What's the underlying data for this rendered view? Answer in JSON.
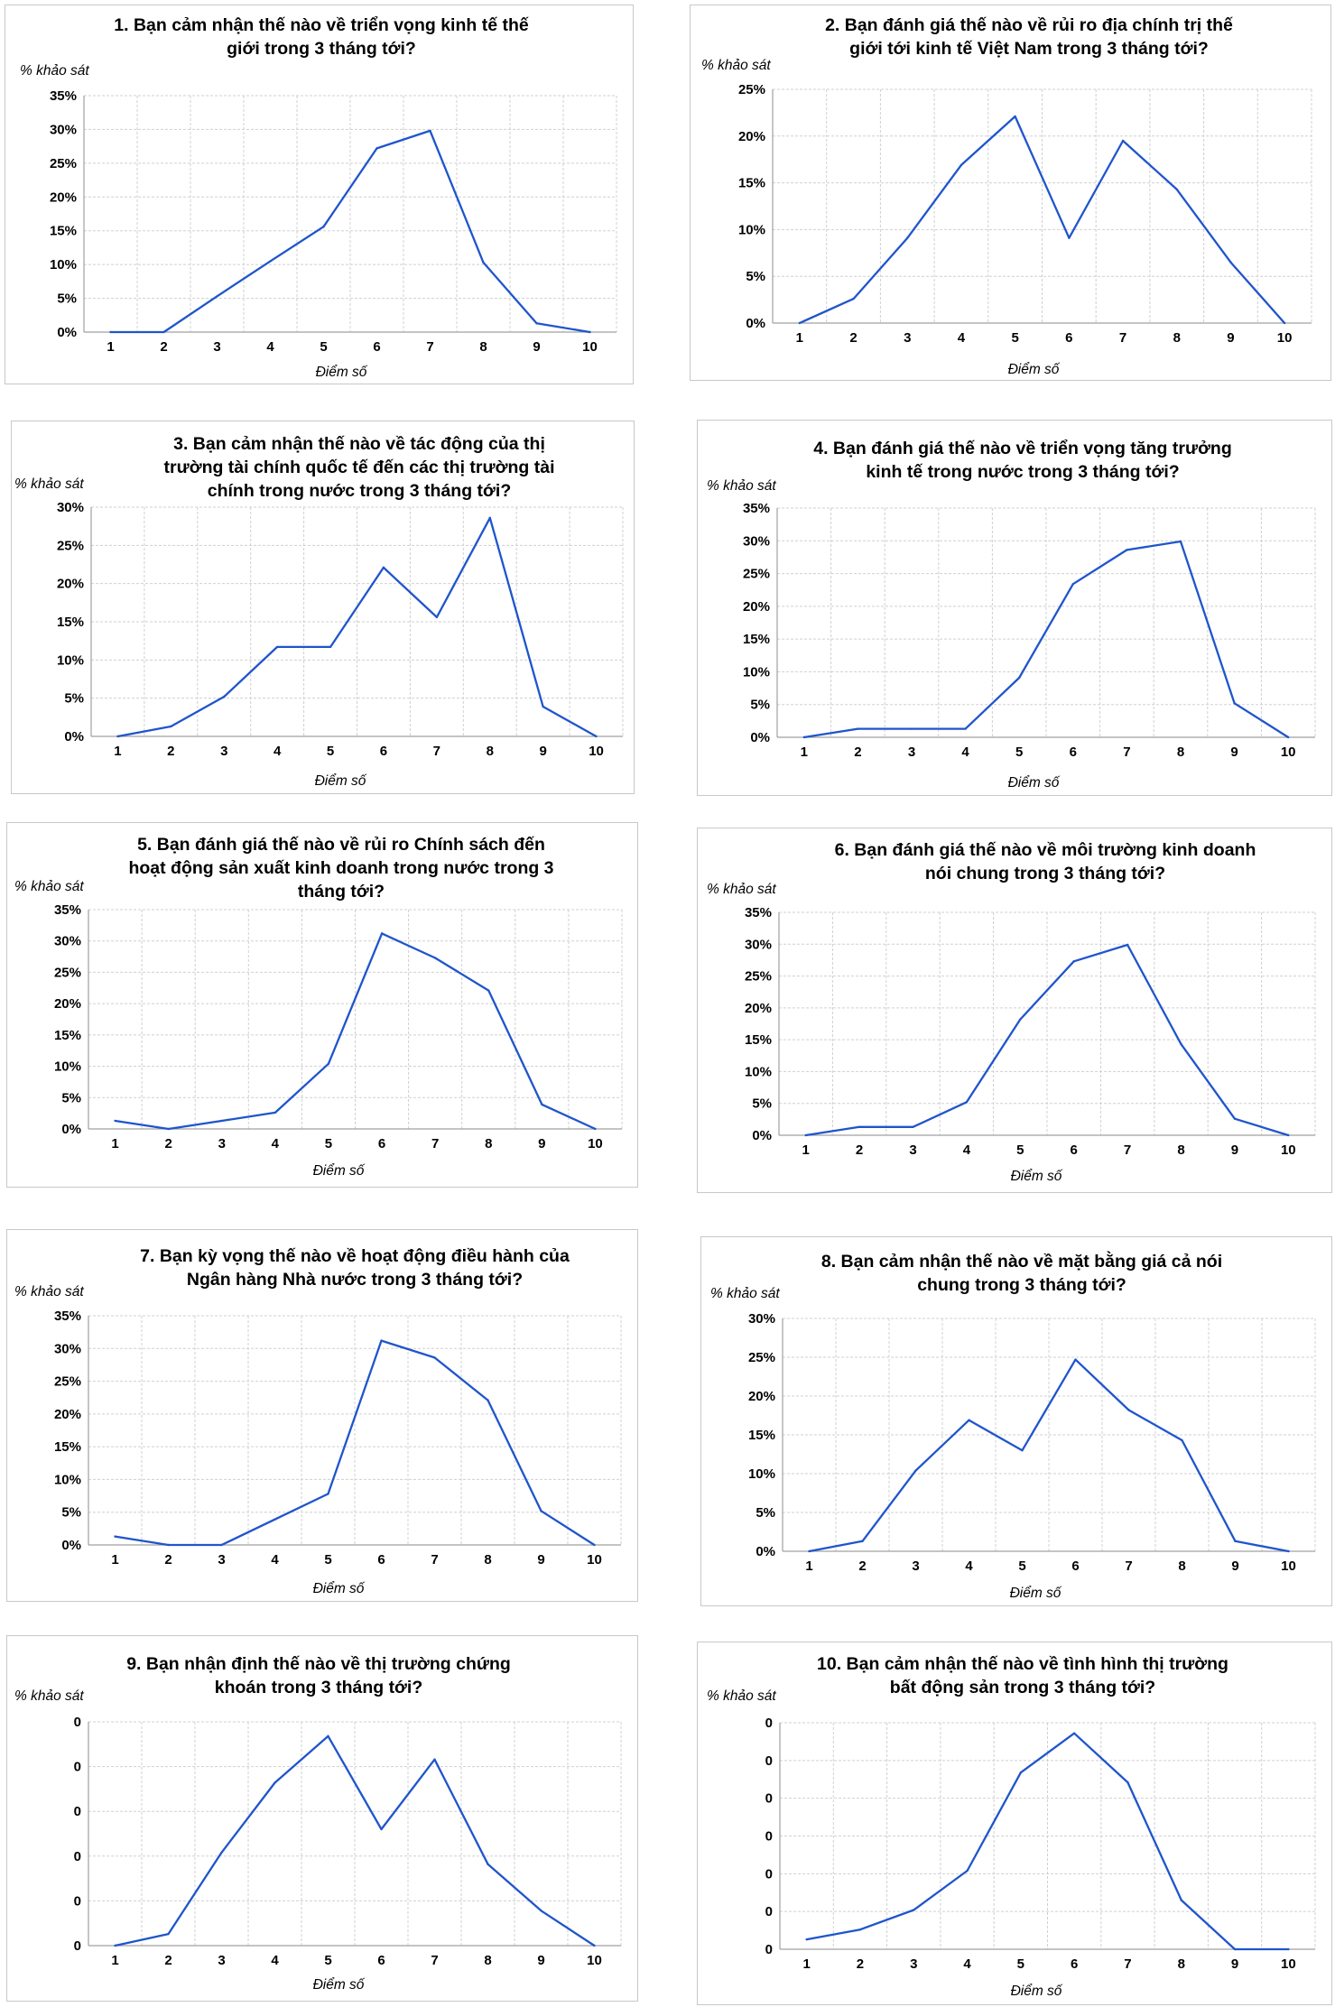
{
  "chart_data": [
    {
      "type": "line",
      "title": [
        "1. Bạn cảm nhận thế nào về triển vọng kinh tế thế",
        "giới trong 3 tháng tới?"
      ],
      "ylabel": "% khảo sát",
      "xlabel": "Điểm số",
      "x": [
        1,
        2,
        3,
        4,
        5,
        6,
        7,
        8,
        9,
        10
      ],
      "values": [
        0,
        0,
        5.3,
        10.5,
        15.6,
        27.2,
        29.8,
        10.3,
        1.3,
        0
      ],
      "ylim": [
        0,
        35
      ],
      "yticks": [
        "0%",
        "5%",
        "10%",
        "15%",
        "20%",
        "25%",
        "30%",
        "35%"
      ]
    },
    {
      "type": "line",
      "title": [
        "2. Bạn đánh giá thế nào về rủi ro địa chính trị thế",
        "giới tới kinh tế Việt Nam trong 3 tháng tới?"
      ],
      "ylabel": "% khảo sát",
      "xlabel": "Điểm số",
      "x": [
        1,
        2,
        3,
        4,
        5,
        6,
        7,
        8,
        9,
        10
      ],
      "values": [
        0,
        2.6,
        9.1,
        16.9,
        22.1,
        9.1,
        19.5,
        14.3,
        6.5,
        0
      ],
      "ylim": [
        0,
        25
      ],
      "yticks": [
        "0%",
        "5%",
        "10%",
        "15%",
        "20%",
        "25%"
      ]
    },
    {
      "type": "line",
      "title": [
        "3. Bạn cảm nhận thế nào về tác động của thị",
        "trường tài chính quốc tế đến các thị trường tài",
        "chính trong nước trong 3 tháng tới?"
      ],
      "ylabel": "% khảo sát",
      "xlabel": "Điểm số",
      "x": [
        1,
        2,
        3,
        4,
        5,
        6,
        7,
        8,
        9,
        10
      ],
      "values": [
        0,
        1.3,
        5.2,
        11.7,
        11.7,
        22.1,
        15.6,
        28.6,
        3.9,
        0
      ],
      "ylim": [
        0,
        30
      ],
      "yticks": [
        "0%",
        "5%",
        "10%",
        "15%",
        "20%",
        "25%",
        "30%"
      ]
    },
    {
      "type": "line",
      "title": [
        "4. Bạn đánh giá thế nào về triển vọng tăng trưởng",
        "kinh tế trong nước trong 3 tháng tới?"
      ],
      "ylabel": "% khảo sát",
      "xlabel": "Điểm số",
      "x": [
        1,
        2,
        3,
        4,
        5,
        6,
        7,
        8,
        9,
        10
      ],
      "values": [
        0,
        1.3,
        1.3,
        1.3,
        9.1,
        23.4,
        28.6,
        29.9,
        5.2,
        0
      ],
      "ylim": [
        0,
        35
      ],
      "yticks": [
        "0%",
        "5%",
        "10%",
        "15%",
        "20%",
        "25%",
        "30%",
        "35%"
      ]
    },
    {
      "type": "line",
      "title": [
        "5. Bạn đánh giá thế nào về rủi ro Chính sách đến",
        "hoạt động sản xuất kinh doanh trong nước trong 3",
        "tháng tới?"
      ],
      "ylabel": "% khảo sát",
      "xlabel": "Điểm số",
      "x": [
        1,
        2,
        3,
        4,
        5,
        6,
        7,
        8,
        9,
        10
      ],
      "values": [
        1.3,
        0,
        1.3,
        2.6,
        10.4,
        31.2,
        27.3,
        22.1,
        3.9,
        0
      ],
      "ylim": [
        0,
        35
      ],
      "yticks": [
        "0%",
        "5%",
        "10%",
        "15%",
        "20%",
        "25%",
        "30%",
        "35%"
      ]
    },
    {
      "type": "line",
      "title": [
        "6. Bạn đánh giá thế nào về môi trường kinh doanh",
        "nói chung trong 3 tháng tới?"
      ],
      "ylabel": "% khảo sát",
      "xlabel": "Điểm số",
      "x": [
        1,
        2,
        3,
        4,
        5,
        6,
        7,
        8,
        9,
        10
      ],
      "values": [
        0,
        1.3,
        1.3,
        5.2,
        18.2,
        27.3,
        29.9,
        14.3,
        2.6,
        0
      ],
      "ylim": [
        0,
        35
      ],
      "yticks": [
        "0%",
        "5%",
        "10%",
        "15%",
        "20%",
        "25%",
        "30%",
        "35%"
      ]
    },
    {
      "type": "line",
      "title": [
        "7. Bạn kỳ vọng thế nào về hoạt động điều hành của",
        "Ngân hàng Nhà nước trong 3 tháng tới?"
      ],
      "ylabel": "% khảo sát",
      "xlabel": "Điểm số",
      "x": [
        1,
        2,
        3,
        4,
        5,
        6,
        7,
        8,
        9,
        10
      ],
      "values": [
        1.3,
        0,
        0,
        3.9,
        7.8,
        31.2,
        28.6,
        22.1,
        5.2,
        0
      ],
      "ylim": [
        0,
        35
      ],
      "yticks": [
        "0%",
        "5%",
        "10%",
        "15%",
        "20%",
        "25%",
        "30%",
        "35%"
      ]
    },
    {
      "type": "line",
      "title": [
        "8. Bạn cảm nhận thế nào về mặt bằng giá cả nói",
        "chung trong 3 tháng tới?"
      ],
      "ylabel": "% khảo sát",
      "xlabel": "Điểm số",
      "x": [
        1,
        2,
        3,
        4,
        5,
        6,
        7,
        8,
        9,
        10
      ],
      "values": [
        0,
        1.3,
        10.4,
        16.9,
        13.0,
        24.7,
        18.2,
        14.3,
        1.3,
        0
      ],
      "ylim": [
        0,
        30
      ],
      "yticks": [
        "0%",
        "5%",
        "10%",
        "15%",
        "20%",
        "25%",
        "30%"
      ]
    },
    {
      "type": "line",
      "title": [
        "9. Bạn nhận định thế nào về thị trường chứng",
        "khoán trong 3 tháng tới?"
      ],
      "ylabel": "% khảo sát",
      "xlabel": "Điểm số",
      "x": [
        1,
        2,
        3,
        4,
        5,
        6,
        7,
        8,
        9,
        10
      ],
      "values": [
        0,
        2.6,
        20.8,
        36.4,
        46.8,
        26.0,
        41.6,
        18.2,
        7.8,
        0
      ],
      "ylim": [
        0,
        50
      ],
      "yticks": [
        "0",
        "0",
        "0",
        "0",
        "0",
        "0"
      ]
    },
    {
      "type": "line",
      "title": [
        "10. Bạn cảm nhận thế nào về tình hình thị trường",
        "bất động sản trong 3 tháng tới?"
      ],
      "ylabel": "% khảo sát",
      "xlabel": "Điểm số",
      "x": [
        1,
        2,
        3,
        4,
        5,
        6,
        7,
        8,
        9,
        10
      ],
      "values": [
        2.6,
        5.2,
        10.4,
        20.8,
        46.8,
        57.2,
        44.2,
        13.0,
        0,
        0
      ],
      "ylim": [
        0,
        60
      ],
      "yticks": [
        "0",
        "0",
        "0",
        "0",
        "0",
        "0",
        "0"
      ]
    }
  ],
  "style": {
    "line_color": "#1f55cc",
    "grid_color": "#d0d0d0",
    "axis_color": "#a0a0a0",
    "border_color": "#c8c8c8"
  }
}
